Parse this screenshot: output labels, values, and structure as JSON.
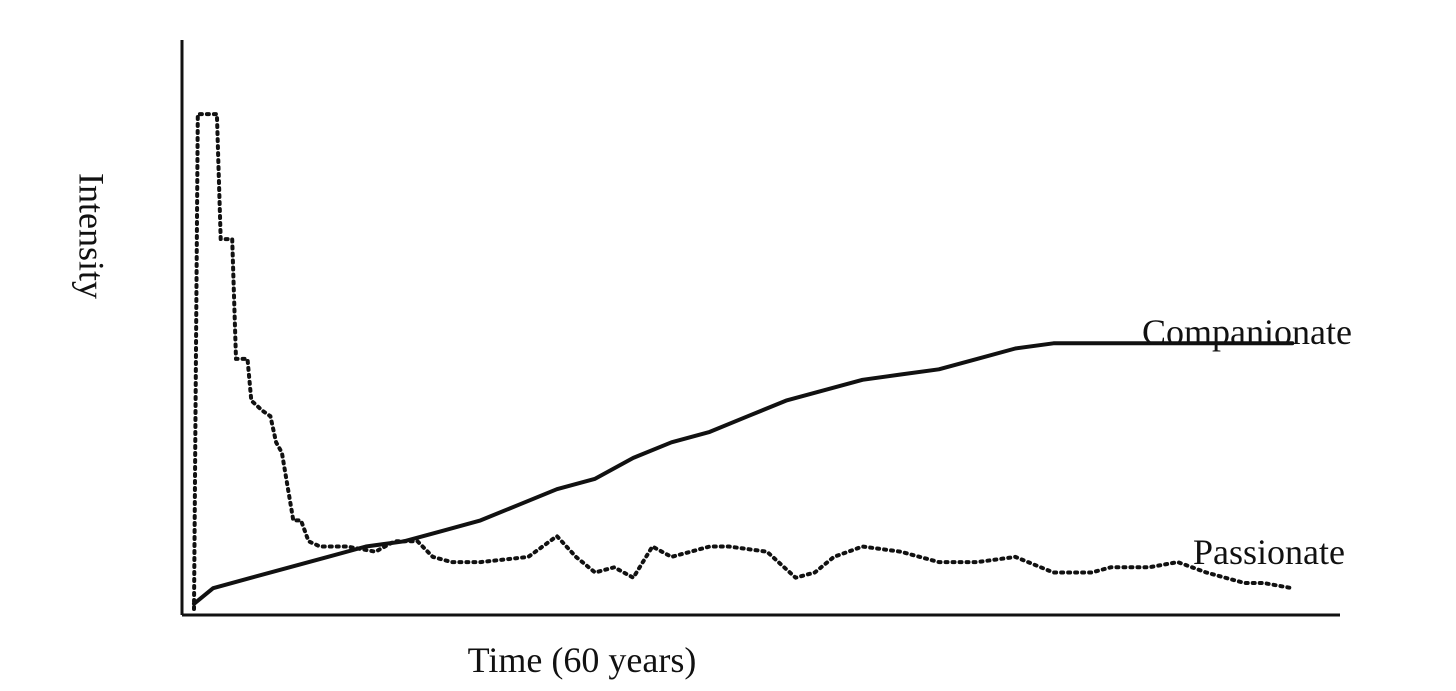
{
  "chart_data": {
    "type": "line",
    "title": "",
    "xlabel": "Time (60 years)",
    "ylabel": "Intensity",
    "xlim": [
      0,
      60
    ],
    "ylim": [
      0,
      100
    ],
    "grid": false,
    "legend": "inline labels at series ends",
    "series": [
      {
        "name": "Companionate",
        "style": "solid",
        "color": "#111111",
        "x": [
          0,
          1,
          3,
          5,
          7,
          9,
          11,
          13,
          15,
          17,
          19,
          21,
          23,
          25,
          27,
          29,
          31,
          33,
          35,
          37,
          39,
          41,
          43,
          45,
          47,
          49,
          51,
          53,
          55,
          57.5
        ],
        "y": [
          1,
          4,
          6,
          8,
          10,
          12,
          13,
          15,
          17,
          20,
          23,
          25,
          29,
          32,
          34,
          37,
          40,
          42,
          44,
          45,
          46,
          48,
          50,
          51,
          51,
          51,
          51,
          51,
          51,
          51
        ]
      },
      {
        "name": "Passionate",
        "style": "dotted",
        "color": "#111111",
        "x": [
          0,
          0.2,
          0.5,
          1.2,
          1.4,
          2.0,
          2.2,
          2.8,
          3.0,
          3.6,
          4.0,
          4.3,
          4.6,
          5.2,
          5.6,
          6.0,
          6.6,
          7.0,
          8.0,
          9.5,
          10.5,
          11.7,
          12.5,
          13.5,
          15,
          17.5,
          19,
          20,
          21,
          22,
          23,
          24,
          25,
          26,
          27,
          28,
          30,
          31.5,
          32.5,
          33.5,
          35,
          37,
          39,
          41,
          43,
          45,
          47,
          48,
          50,
          51.5,
          53,
          55,
          56,
          57.5
        ],
        "y": [
          0,
          95,
          95,
          95,
          71,
          71,
          48,
          48,
          40,
          38,
          37,
          32,
          30,
          17,
          17,
          13,
          12,
          12,
          12,
          11,
          13,
          13,
          10,
          9,
          9,
          10,
          14,
          10,
          7,
          8,
          6,
          12,
          10,
          11,
          12,
          12,
          11,
          6,
          7,
          10,
          12,
          11,
          9,
          9,
          10,
          7,
          7,
          8,
          8,
          9,
          7,
          5,
          5,
          4
        ]
      }
    ]
  }
}
